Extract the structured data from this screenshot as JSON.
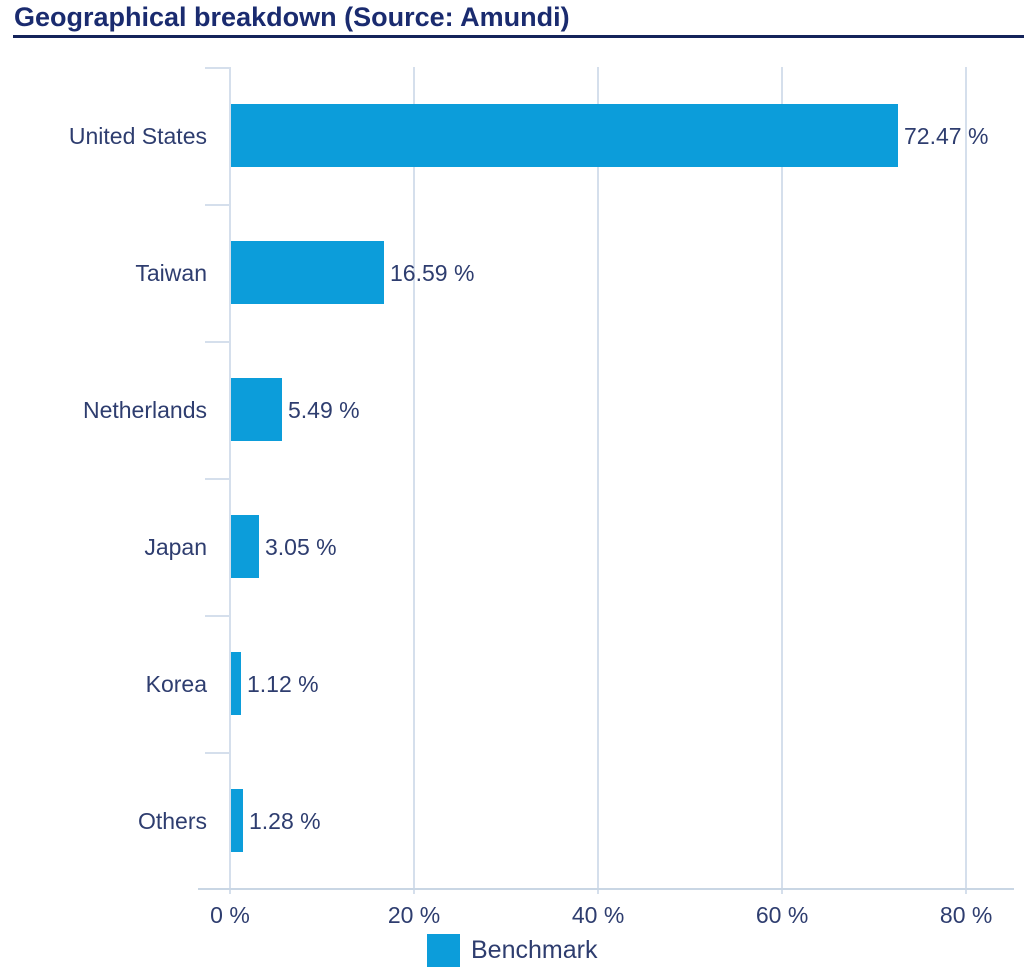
{
  "title": "Geographical breakdown (Source: Amundi)",
  "legend": {
    "label": "Benchmark"
  },
  "colors": {
    "bar": "#0c9dda",
    "title": "#1a2b6f",
    "label": "#2e3d6f",
    "grid": "#d5dfec",
    "axis": "#c9d6e4",
    "rule": "#14235a"
  },
  "chart_data": {
    "type": "bar",
    "orientation": "horizontal",
    "title": "Geographical breakdown (Source: Amundi)",
    "categories": [
      "United States",
      "Taiwan",
      "Netherlands",
      "Japan",
      "Korea",
      "Others"
    ],
    "series": [
      {
        "name": "Benchmark",
        "values": [
          72.47,
          16.59,
          5.49,
          3.05,
          1.12,
          1.28
        ]
      }
    ],
    "value_labels": [
      "72.47 %",
      "16.59 %",
      "5.49 %",
      "3.05 %",
      "1.12 %",
      "1.28 %"
    ],
    "x_ticks": [
      "0 %",
      "20 %",
      "40 %",
      "60 %",
      "80 %"
    ],
    "x_tick_values": [
      0,
      20,
      40,
      60,
      80
    ],
    "xlabel": "",
    "ylabel": "",
    "xlim": [
      0,
      85.2
    ],
    "grid": "vertical-only",
    "legend_position": "bottom"
  }
}
